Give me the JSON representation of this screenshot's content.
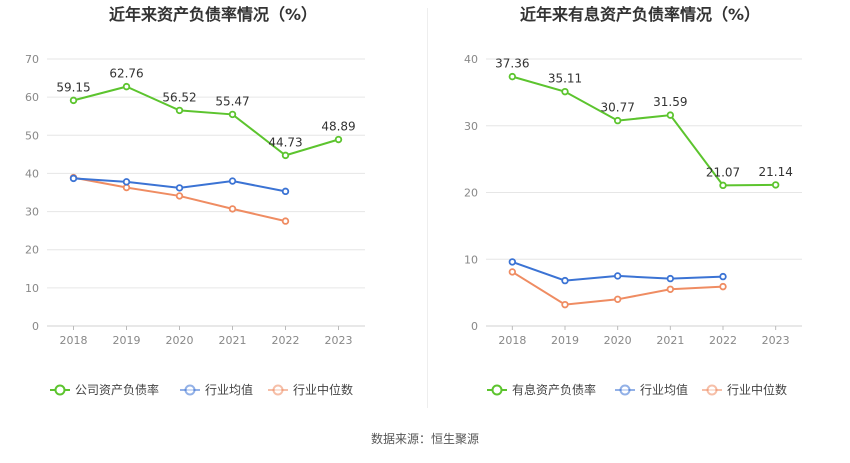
{
  "source_label": "数据来源：恒生聚源",
  "colors": {
    "company": "#5cc42e",
    "avg": "#3b73d4",
    "median": "#ef8c62"
  },
  "chart_data": [
    {
      "type": "line",
      "title": "近年来资产负债率情况（%）",
      "categories": [
        "2018",
        "2019",
        "2020",
        "2021",
        "2022",
        "2023"
      ],
      "ylim": [
        0,
        70
      ],
      "yticks": [
        0,
        10,
        20,
        30,
        40,
        50,
        60,
        70
      ],
      "grid": true,
      "legend_position": "bottom",
      "series": [
        {
          "name": "公司资产负债率",
          "color_key": "company",
          "labels": true,
          "values": [
            59.15,
            62.76,
            56.52,
            55.47,
            44.73,
            48.89
          ]
        },
        {
          "name": "行业均值",
          "color_key": "avg",
          "labels": false,
          "values": [
            38.7,
            37.8,
            36.2,
            38.0,
            35.3,
            null
          ]
        },
        {
          "name": "行业中位数",
          "color_key": "median",
          "labels": false,
          "values": [
            38.9,
            36.3,
            34.1,
            30.7,
            27.5,
            null
          ]
        }
      ]
    },
    {
      "type": "line",
      "title": "近年来有息资产负债率情况（%）",
      "categories": [
        "2018",
        "2019",
        "2020",
        "2021",
        "2022",
        "2023"
      ],
      "ylim": [
        0,
        40
      ],
      "yticks": [
        0,
        10,
        20,
        30,
        40
      ],
      "grid": true,
      "legend_position": "bottom",
      "series": [
        {
          "name": "有息资产负债率",
          "color_key": "company",
          "labels": true,
          "values": [
            37.36,
            35.11,
            30.77,
            31.59,
            21.07,
            21.14
          ]
        },
        {
          "name": "行业均值",
          "color_key": "avg",
          "labels": false,
          "values": [
            9.6,
            6.8,
            7.5,
            7.1,
            7.4,
            null
          ]
        },
        {
          "name": "行业中位数",
          "color_key": "median",
          "labels": false,
          "values": [
            8.1,
            3.2,
            4.0,
            5.5,
            5.9,
            null
          ]
        }
      ]
    }
  ]
}
